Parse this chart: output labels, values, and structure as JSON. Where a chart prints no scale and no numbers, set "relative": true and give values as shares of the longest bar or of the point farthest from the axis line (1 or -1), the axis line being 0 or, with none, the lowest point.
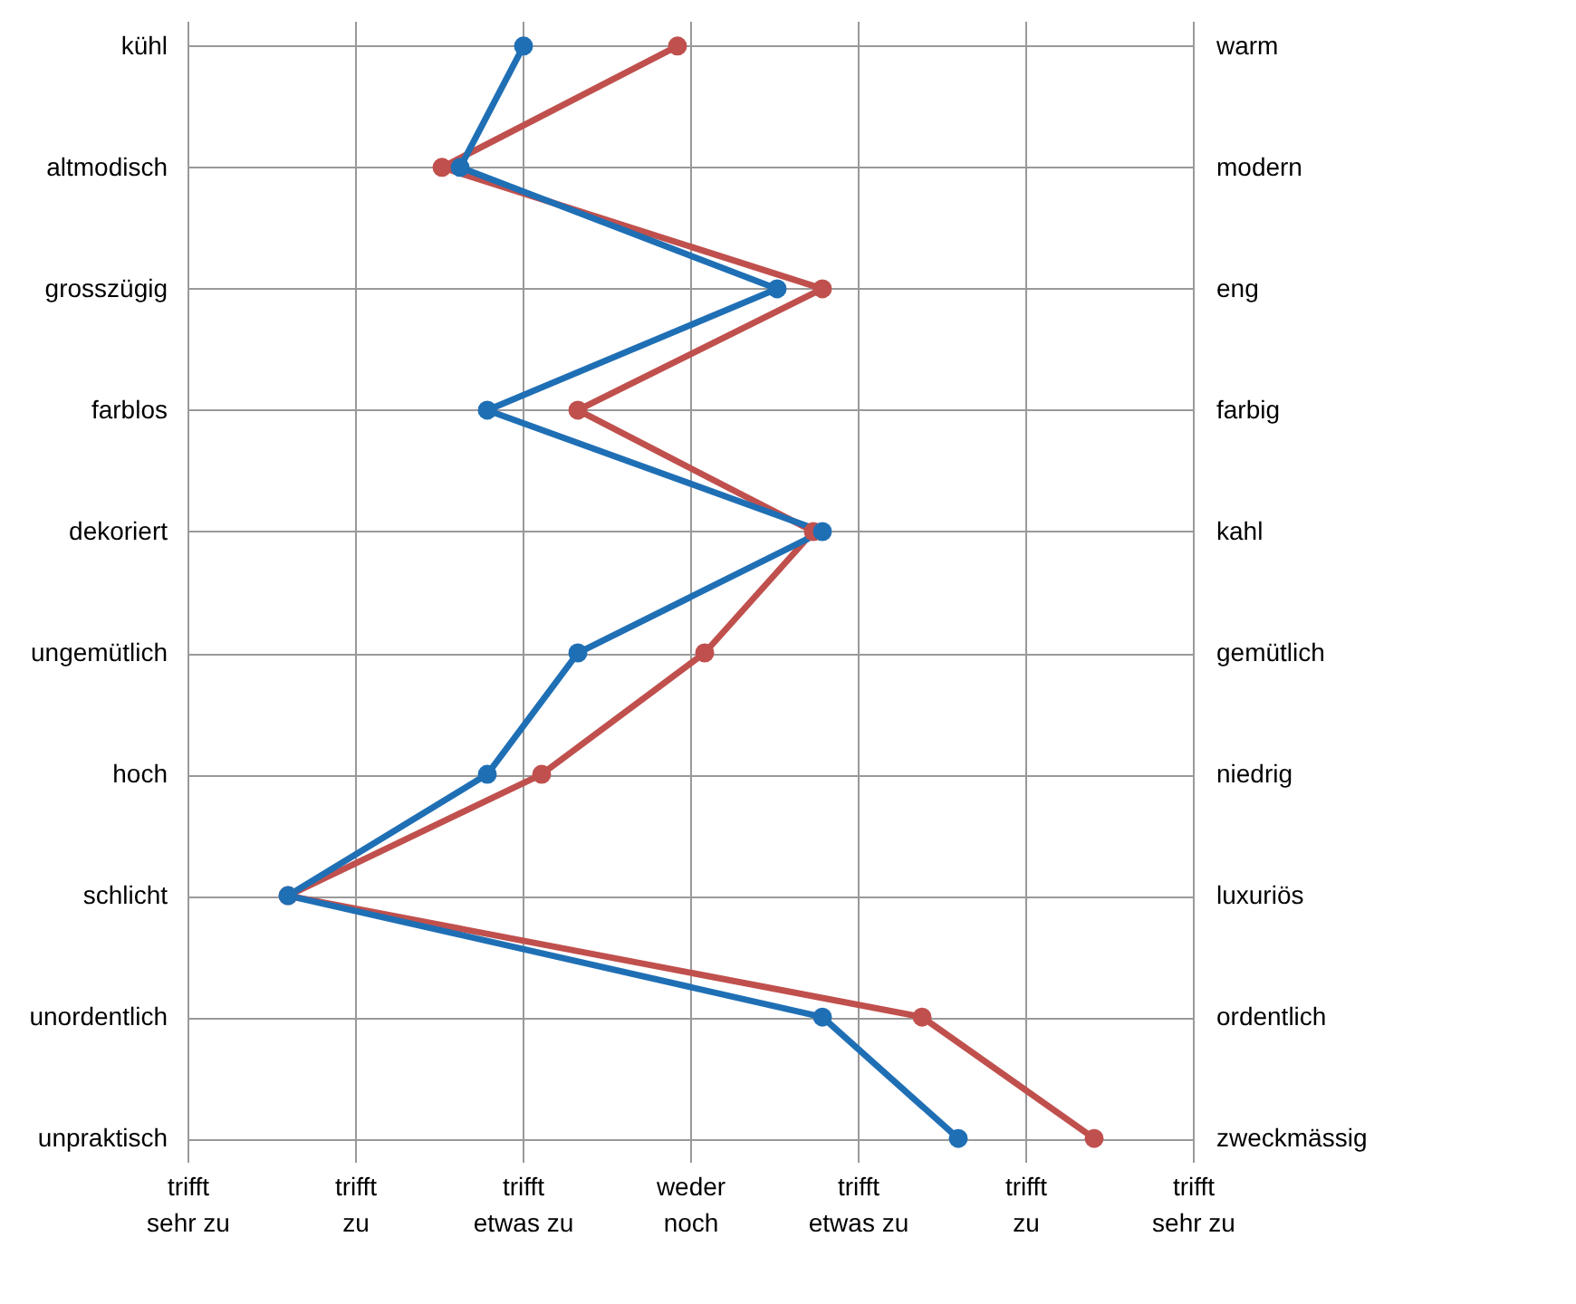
{
  "chart_data": {
    "type": "line",
    "orientation": "horizontal",
    "relative": true,
    "categories": [
      "kühl",
      "altmodisch",
      "grosszügig",
      "farblos",
      "dekoriert",
      "ungemütlich",
      "hoch",
      "schlicht",
      "unordentlich",
      "unpraktisch"
    ],
    "y2_categories": [
      "warm",
      "modern",
      "eng",
      "farbig",
      "kahl",
      "gemütlich",
      "niedrig",
      "luxuriös",
      "ordentlich",
      "zweckmässig"
    ],
    "annotations": [
      "trifft\nsehr zu",
      "trifft\nzu",
      "trifft\netwas zu",
      "weder\nnoch",
      "trifft\netwas zu",
      "trifft\nzu",
      "trifft\nsehr zu"
    ],
    "series": [
      {
        "color": "#c0504d",
        "values": [
          0.54,
          0.28,
          0.7,
          0.43,
          0.69,
          0.57,
          0.39,
          0.11,
          0.81,
          1
        ]
      },
      {
        "color": "#1f6fb5",
        "values": [
          0.37,
          0.3,
          0.65,
          0.33,
          0.7,
          0.43,
          0.33,
          0.11,
          0.7,
          0.85
        ]
      }
    ],
    "grid": true,
    "marker": "circle",
    "line_style": "solid"
  }
}
